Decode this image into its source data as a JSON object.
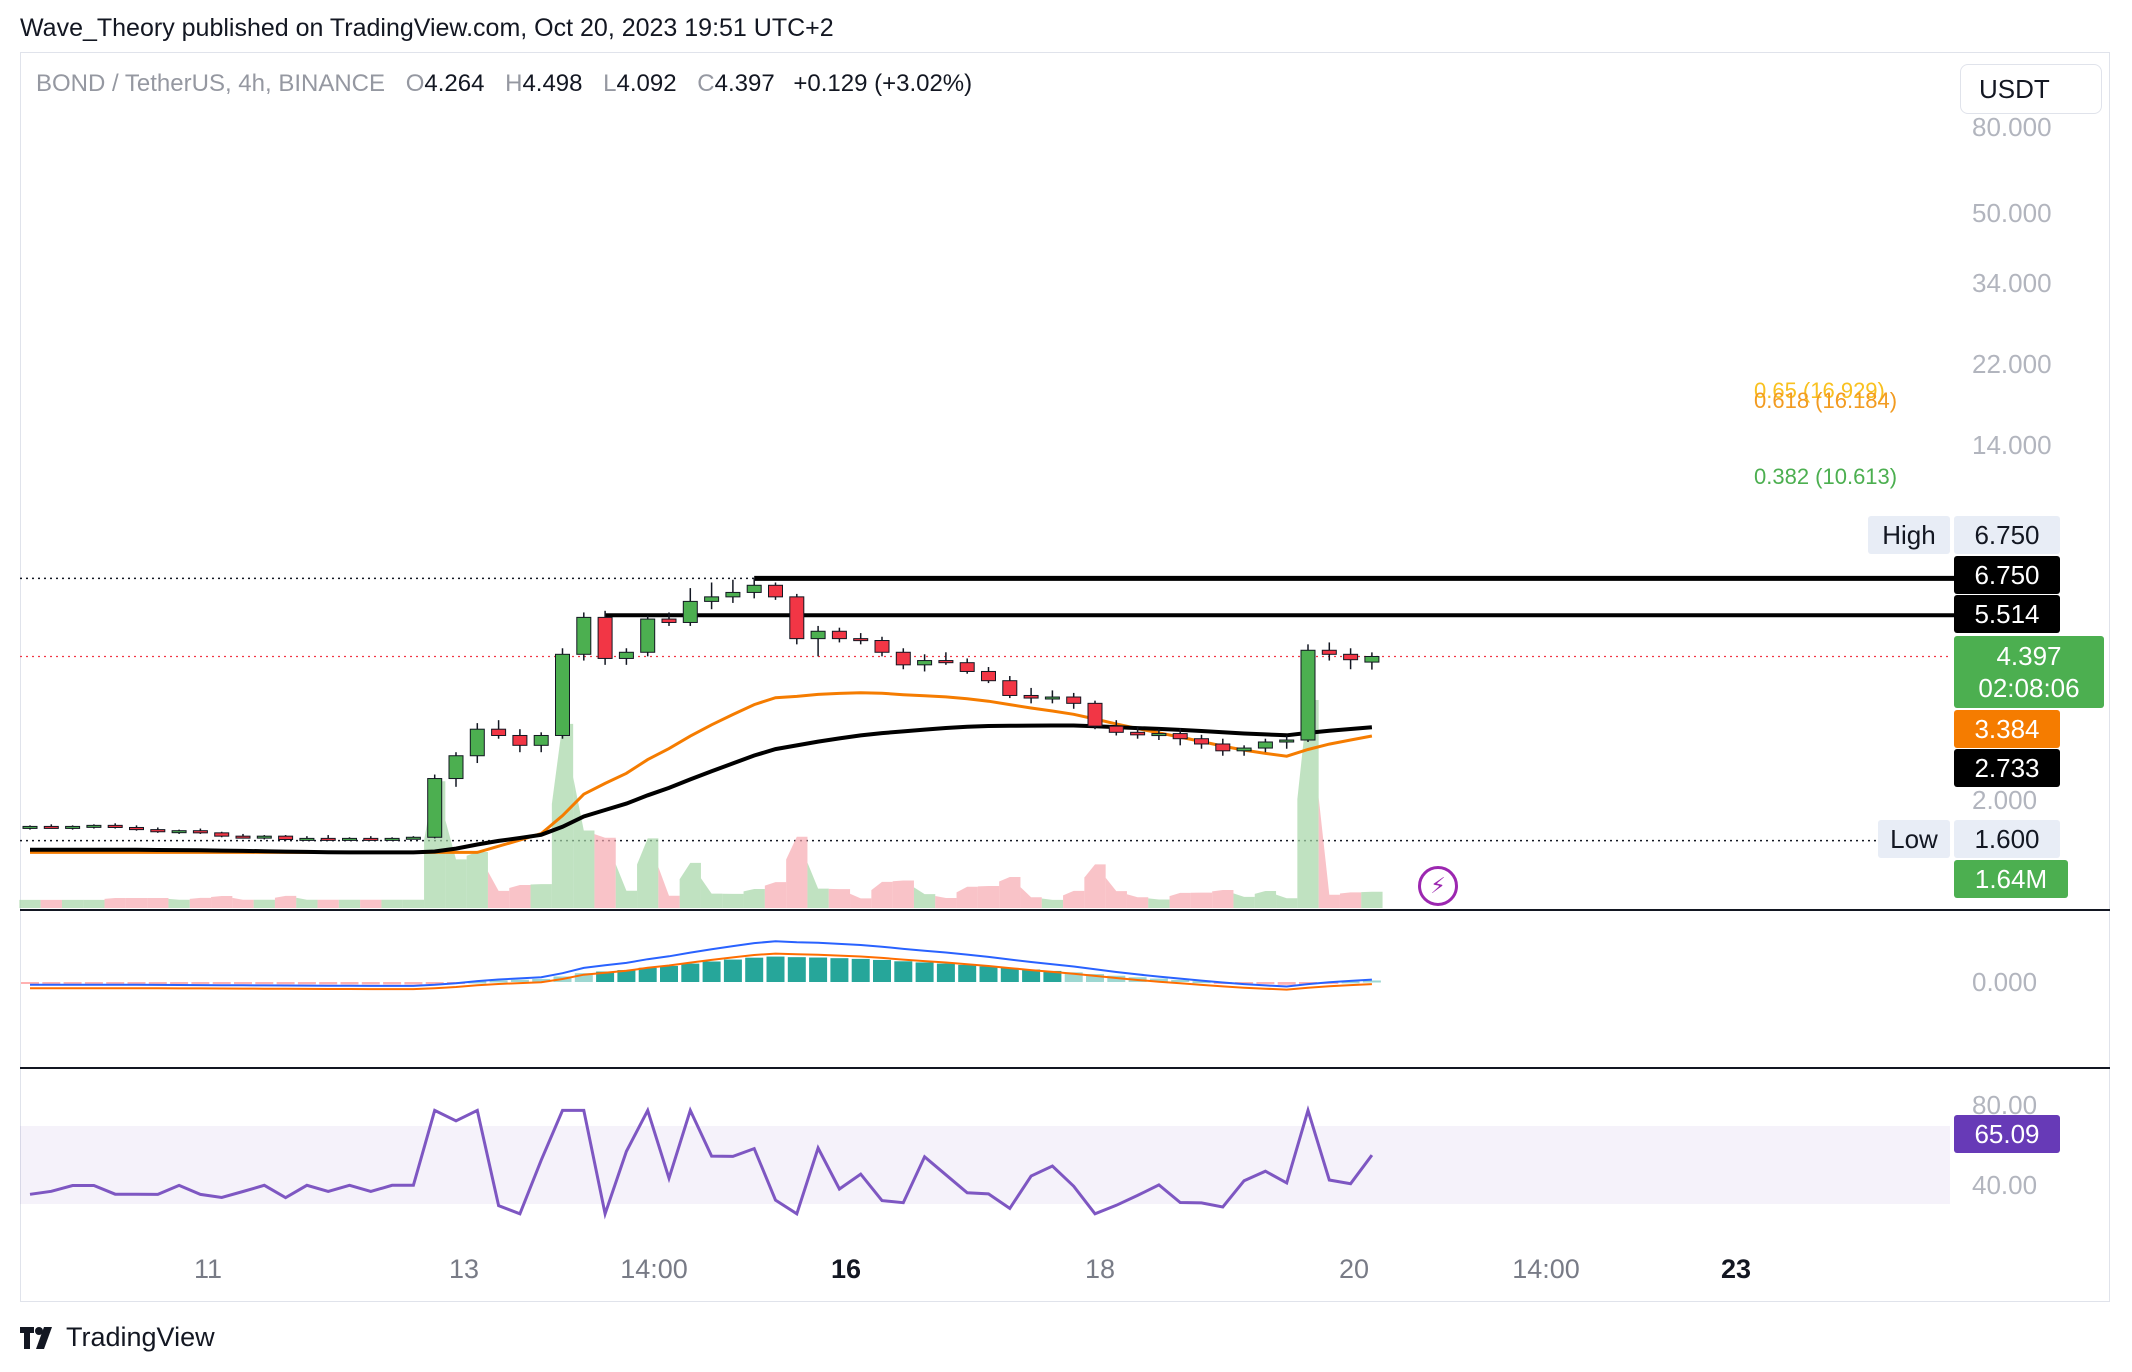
{
  "publisher": "Wave_Theory published on TradingView.com, Oct 20, 2023 19:51 UTC+2",
  "legend": {
    "symbol": "BOND / TetherUS, 4h, BINANCE",
    "o_key": "O",
    "o": "4.264",
    "h_key": "H",
    "h": "4.498",
    "l_key": "L",
    "l": "4.092",
    "c_key": "C",
    "c": "4.397",
    "change": "+0.129 (+3.02%)"
  },
  "currency_button": "USDT",
  "footer": {
    "brand": "TradingView"
  },
  "colors": {
    "up": "#4caf50",
    "down": "#f23645",
    "ema_fast": "#f57c00",
    "ema_slow": "#000000",
    "macd": "#2962ff",
    "signal": "#ff6d00",
    "rsi": "#7e57c2",
    "fib_618": "#f29b21",
    "fib_382": "#4caf50",
    "fib_65": "#f9c11f"
  },
  "y_axis_labels": [
    "80.000",
    "50.000",
    "34.000",
    "22.000",
    "14.000",
    "2.000"
  ],
  "macd_axis_label": "0.000",
  "rsi_axis_labels": [
    "80.00",
    "40.00"
  ],
  "x_axis_labels": [
    {
      "text": "11",
      "bold": false
    },
    {
      "text": "13",
      "bold": false
    },
    {
      "text": "14:00",
      "bold": false
    },
    {
      "text": "16",
      "bold": true
    },
    {
      "text": "18",
      "bold": false
    },
    {
      "text": "20",
      "bold": false
    },
    {
      "text": "14:00",
      "bold": false
    },
    {
      "text": "23",
      "bold": true
    }
  ],
  "fib_levels": [
    {
      "label": "0.65 (16.929)",
      "color": "#f9c11f"
    },
    {
      "label": "0.618 (16.184)",
      "color": "#f29b21"
    },
    {
      "label": "0.382 (10.613)",
      "color": "#4caf50"
    }
  ],
  "price_tags": {
    "high_label": "High",
    "high_value": "6.750",
    "res1": "6.750",
    "res2": "5.514",
    "last": "4.397",
    "countdown": "02:08:06",
    "ema_fast": "3.384",
    "ema_slow": "2.733",
    "low_label": "Low",
    "low_value": "1.600",
    "volume": "1.64M",
    "rsi": "65.09"
  },
  "chart_data": {
    "type": "candlestick",
    "symbol": "BOND / TetherUS",
    "timeframe": "4h",
    "exchange": "BINANCE",
    "y_scale": "log",
    "last_bar": {
      "open": 4.264,
      "high": 4.498,
      "low": 4.092,
      "close": 4.397,
      "change": 0.129,
      "change_pct": 3.02
    },
    "horizontal_levels": {
      "high": 6.75,
      "resistance_1": 6.75,
      "resistance_2": 5.514,
      "low": 1.6,
      "last_price": 4.397
    },
    "fibonacci": [
      {
        "ratio": 0.65,
        "price": 16.929
      },
      {
        "ratio": 0.618,
        "price": 16.184
      },
      {
        "ratio": 0.382,
        "price": 10.613
      }
    ],
    "moving_averages": {
      "ema_fast_last": 3.384,
      "ema_slow_last": 2.733
    },
    "ohlc": [
      [
        1.72,
        1.74,
        1.7,
        1.73
      ],
      [
        1.73,
        1.75,
        1.71,
        1.72
      ],
      [
        1.72,
        1.74,
        1.7,
        1.73
      ],
      [
        1.73,
        1.75,
        1.71,
        1.74
      ],
      [
        1.74,
        1.76,
        1.71,
        1.72
      ],
      [
        1.72,
        1.74,
        1.69,
        1.7
      ],
      [
        1.7,
        1.72,
        1.67,
        1.68
      ],
      [
        1.68,
        1.7,
        1.66,
        1.69
      ],
      [
        1.69,
        1.71,
        1.66,
        1.67
      ],
      [
        1.67,
        1.68,
        1.63,
        1.64
      ],
      [
        1.64,
        1.66,
        1.62,
        1.63
      ],
      [
        1.63,
        1.65,
        1.61,
        1.64
      ],
      [
        1.64,
        1.65,
        1.6,
        1.61
      ],
      [
        1.61,
        1.64,
        1.6,
        1.62
      ],
      [
        1.62,
        1.65,
        1.6,
        1.61
      ],
      [
        1.61,
        1.63,
        1.6,
        1.62
      ],
      [
        1.62,
        1.64,
        1.6,
        1.61
      ],
      [
        1.61,
        1.63,
        1.6,
        1.62
      ],
      [
        1.62,
        1.64,
        1.61,
        1.63
      ],
      [
        1.63,
        2.3,
        1.62,
        2.25
      ],
      [
        2.25,
        2.6,
        2.15,
        2.55
      ],
      [
        2.55,
        3.05,
        2.45,
        2.95
      ],
      [
        2.95,
        3.1,
        2.8,
        2.85
      ],
      [
        2.85,
        2.95,
        2.6,
        2.7
      ],
      [
        2.7,
        2.9,
        2.6,
        2.85
      ],
      [
        2.85,
        4.6,
        2.8,
        4.45
      ],
      [
        4.45,
        5.6,
        4.3,
        5.45
      ],
      [
        5.45,
        5.65,
        4.2,
        4.35
      ],
      [
        4.35,
        4.6,
        4.2,
        4.5
      ],
      [
        4.5,
        5.5,
        4.4,
        5.4
      ],
      [
        5.4,
        5.6,
        5.2,
        5.3
      ],
      [
        5.3,
        6.4,
        5.2,
        5.95
      ],
      [
        5.95,
        6.6,
        5.7,
        6.1
      ],
      [
        6.1,
        6.7,
        5.9,
        6.25
      ],
      [
        6.25,
        6.75,
        6.05,
        6.5
      ],
      [
        6.5,
        6.6,
        6.0,
        6.1
      ],
      [
        6.1,
        6.2,
        4.7,
        4.85
      ],
      [
        4.85,
        5.2,
        4.4,
        5.05
      ],
      [
        5.05,
        5.15,
        4.75,
        4.85
      ],
      [
        4.85,
        5.0,
        4.7,
        4.8
      ],
      [
        4.8,
        4.9,
        4.4,
        4.5
      ],
      [
        4.5,
        4.6,
        4.1,
        4.2
      ],
      [
        4.2,
        4.45,
        4.05,
        4.3
      ],
      [
        4.3,
        4.5,
        4.2,
        4.25
      ],
      [
        4.25,
        4.35,
        4.0,
        4.05
      ],
      [
        4.05,
        4.15,
        3.8,
        3.85
      ],
      [
        3.85,
        3.95,
        3.5,
        3.55
      ],
      [
        3.55,
        3.7,
        3.4,
        3.5
      ],
      [
        3.5,
        3.65,
        3.4,
        3.52
      ],
      [
        3.52,
        3.6,
        3.3,
        3.4
      ],
      [
        3.4,
        3.45,
        2.95,
        3.0
      ],
      [
        3.0,
        3.1,
        2.85,
        2.9
      ],
      [
        2.9,
        2.98,
        2.8,
        2.86
      ],
      [
        2.86,
        2.95,
        2.78,
        2.88
      ],
      [
        2.88,
        2.96,
        2.7,
        2.8
      ],
      [
        2.8,
        2.86,
        2.65,
        2.72
      ],
      [
        2.72,
        2.8,
        2.55,
        2.62
      ],
      [
        2.62,
        2.7,
        2.55,
        2.66
      ],
      [
        2.66,
        2.8,
        2.6,
        2.75
      ],
      [
        2.75,
        2.85,
        2.65,
        2.78
      ],
      [
        2.78,
        4.7,
        2.75,
        4.55
      ],
      [
        4.55,
        4.75,
        4.3,
        4.45
      ],
      [
        4.45,
        4.6,
        4.1,
        4.32
      ],
      [
        4.264,
        4.498,
        4.092,
        4.397
      ]
    ],
    "volume_last": "1.64M",
    "macd": {
      "zero_label": "0.000"
    },
    "rsi": {
      "value": 65.09,
      "upper": 80,
      "lower": 40
    }
  }
}
